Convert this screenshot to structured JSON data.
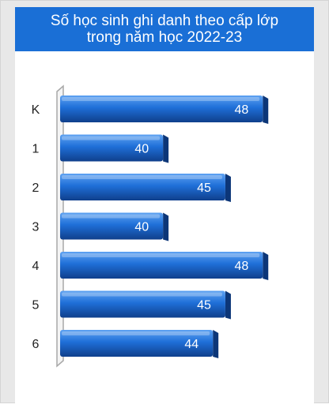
{
  "chart_data": {
    "type": "bar",
    "orientation": "horizontal",
    "title_lines": [
      "Số học sinh ghi danh theo cấp lớp",
      "trong năm học 2022-23"
    ],
    "categories": [
      "K",
      "1",
      "2",
      "3",
      "4",
      "5",
      "6"
    ],
    "values": [
      48,
      40,
      45,
      40,
      48,
      45,
      44
    ],
    "xlim": [
      32,
      49
    ],
    "xlabel": "",
    "ylabel": "",
    "grid": false,
    "legend": "none",
    "data_labels": true,
    "colors": {
      "title_bg": "#1a6fd6",
      "bar_top": "#5ea2f2",
      "bar_mid": "#1f6fd8",
      "bar_bottom": "#0f3f8c",
      "bar_end": "#0c3678",
      "axis": "#a8a8a8",
      "label_text": "#ffffff"
    }
  }
}
